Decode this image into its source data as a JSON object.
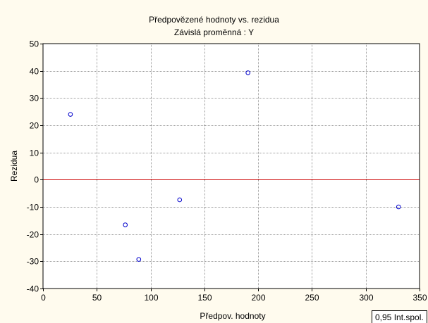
{
  "chart_data": {
    "type": "scatter",
    "title": "Předpovězené hodnoty vs. rezidua",
    "subtitle": "Závislá proměnná : Y",
    "xlabel": "Předpov. hodnoty",
    "ylabel": "Rezidua",
    "xlim": [
      0,
      350
    ],
    "ylim": [
      -40,
      50
    ],
    "xticks": [
      0,
      50,
      100,
      150,
      200,
      250,
      300,
      350
    ],
    "yticks": [
      -40,
      -30,
      -20,
      -10,
      0,
      10,
      20,
      30,
      40,
      50
    ],
    "grid": true,
    "reference_line": {
      "y": 0,
      "color": "#cc0000"
    },
    "points": [
      {
        "x": 25.5,
        "y": 24.0
      },
      {
        "x": 76.5,
        "y": -16.6
      },
      {
        "x": 89.0,
        "y": -29.3
      },
      {
        "x": 127.0,
        "y": -7.4
      },
      {
        "x": 190.5,
        "y": 39.3
      },
      {
        "x": 330.5,
        "y": -10.0
      }
    ],
    "marker_color": "#0000cc",
    "background_color": "#fffbee",
    "plot_background_color": "#ffffff",
    "legend_note": "0,95 Int.spol."
  }
}
